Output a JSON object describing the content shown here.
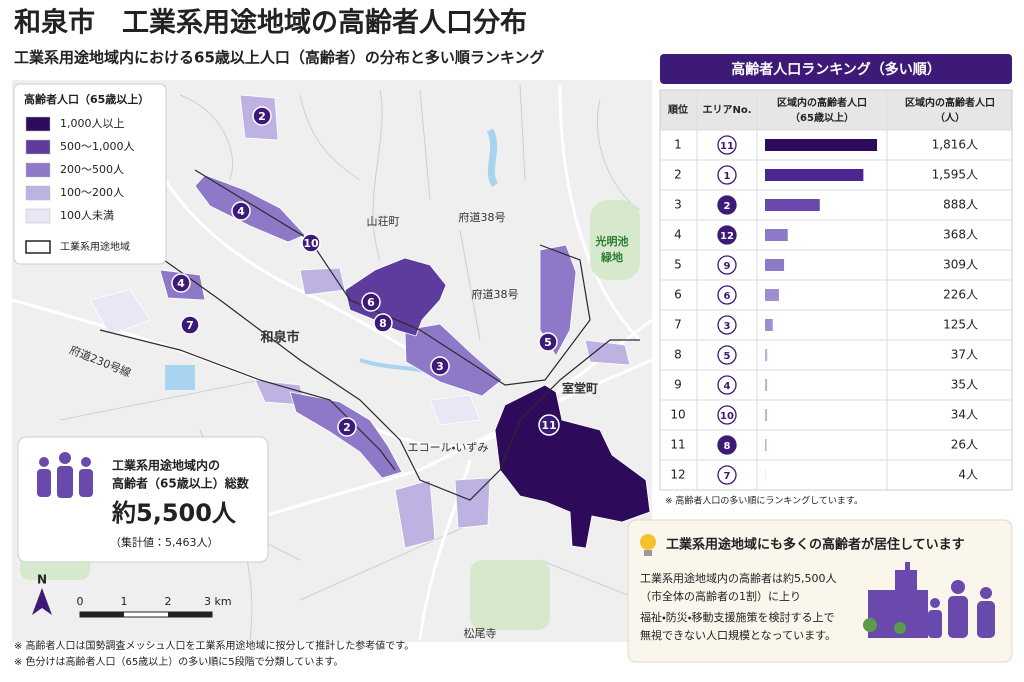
{
  "header": {
    "title": "和泉市　工業系用途地域の高齢者人口分布",
    "subtitle": "工業系用途地域内における65歳以上人口（高齢者）の分布と多い順ランキング"
  },
  "legend": {
    "title": "高齢者人口（65歳以上）",
    "classes": [
      {
        "label": "1,000人以上",
        "color": "#2d0b5a"
      },
      {
        "label": "500〜1,000人",
        "color": "#5e3c9e"
      },
      {
        "label": "200〜500人",
        "color": "#8e78c8"
      },
      {
        "label": "100〜200人",
        "color": "#bdb2e2"
      },
      {
        "label": "100人未満",
        "color": "#e9e6f5"
      }
    ],
    "zone_label": "工業系用途地域"
  },
  "map": {
    "places": [
      "山荘町",
      "府道38号",
      "府道38号",
      "光明池",
      "緑地",
      "和泉市",
      "府道230号線",
      "室堂町",
      "エコール・いずみ",
      "松尾寺"
    ],
    "markers": [
      "2",
      "4",
      "10",
      "4",
      "7",
      "6",
      "8",
      "3",
      "5",
      "2",
      "11"
    ],
    "north": "N",
    "scale": [
      "0",
      "1",
      "2",
      "3 km"
    ]
  },
  "summary": {
    "lines": [
      "工業系用途地域内の",
      "高齢者（65歳以上）総数"
    ],
    "total": "約5,500人",
    "note": "（集計値：5,463人）"
  },
  "ranking": {
    "title": "高齢者人口ランキング（多い順）",
    "columns": [
      [
        "順位"
      ],
      [
        "エリアNo."
      ],
      [
        "区域内の高齢者人口",
        "（65歳以上）"
      ],
      [
        "区域内の高齢者人口",
        "（人）"
      ]
    ],
    "ranks": [
      1,
      2,
      3,
      4,
      5,
      6,
      7,
      8,
      9,
      10,
      11,
      12
    ],
    "areas": [
      "11",
      "1",
      "2",
      "12",
      "9",
      "6",
      "3",
      "5",
      "4",
      "10",
      "8",
      "7"
    ],
    "area_filled": [
      false,
      false,
      true,
      true,
      false,
      false,
      false,
      false,
      false,
      false,
      true,
      false
    ],
    "values": [
      1816,
      1595,
      888,
      368,
      309,
      226,
      125,
      37,
      35,
      34,
      26,
      4
    ],
    "value_labels": [
      "1,816人",
      "1,595人",
      "888人",
      "368人",
      "309人",
      "226人",
      "125人",
      "37人",
      "35人",
      "34人",
      "26人",
      "4人"
    ],
    "bar_colors": [
      "#2d0b5a",
      "#4b2590",
      "#6a49ad",
      "#8e78c8",
      "#8e78c8",
      "#9f8dd2",
      "#9f8dd2",
      "#bdb2e2",
      "#bdb2e2",
      "#bdb2e2",
      "#bdb2e2",
      "#bdb2e2"
    ],
    "note": "※ 高齢者人口の多い順にランキングしています。"
  },
  "callout": {
    "title": "工業系用途地域にも多くの高齢者が居住しています",
    "lines": [
      "工業系用途地域内の高齢者は約5,500人",
      "（市全体の高齢者の1割）に上り",
      "福祉・防災・移動支援施策を検討する上で",
      "無視できない人口規模となっています。"
    ]
  },
  "footnotes": [
    "※ 高齢者人口は国勢調査メッシュ人口を工業系用途地域に按分して推計した参考値です。",
    "※ 色分けは高齢者人口（65歳以上）の多い順に5段階で分類しています。"
  ]
}
